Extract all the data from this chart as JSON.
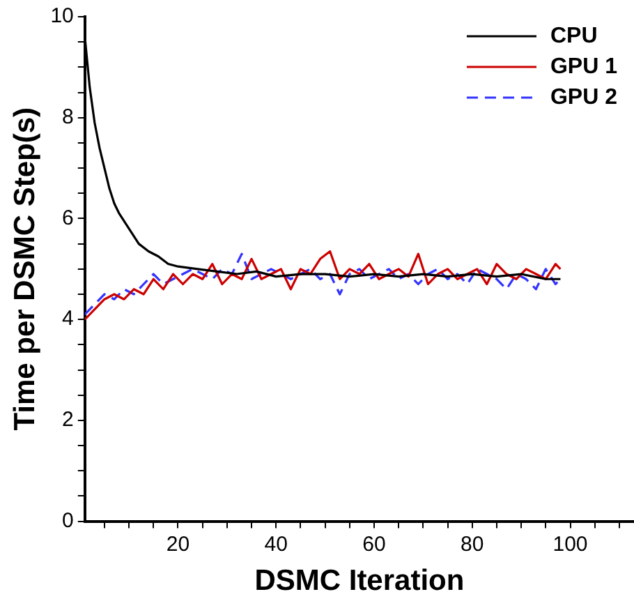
{
  "chart_data": {
    "type": "line",
    "xlabel": "DSMC Iteration",
    "ylabel": "Time per DSMC Step(s)",
    "xlim": [
      1,
      113
    ],
    "xticks": [
      {
        "value": 5,
        "label": null
      },
      {
        "value": 10,
        "label": null
      },
      {
        "value": 15,
        "label": null
      },
      20,
      {
        "value": 25,
        "label": null
      },
      {
        "value": 30,
        "label": null
      },
      {
        "value": 35,
        "label": null
      },
      40,
      {
        "value": 45,
        "label": null
      },
      {
        "value": 50,
        "label": null
      },
      {
        "value": 55,
        "label": null
      },
      60,
      {
        "value": 65,
        "label": null
      },
      {
        "value": 70,
        "label": null
      },
      {
        "value": 75,
        "label": null
      },
      80,
      {
        "value": 85,
        "label": null
      },
      {
        "value": 90,
        "label": null
      },
      {
        "value": 95,
        "label": null
      },
      100,
      {
        "value": 105,
        "label": null
      },
      {
        "value": 110,
        "label": null
      }
    ],
    "ylim": [
      0,
      10
    ],
    "yticks": [
      0,
      {
        "value": 0.5,
        "label": null
      },
      {
        "value": 1,
        "label": null
      },
      {
        "value": 1.5,
        "label": null
      },
      2,
      {
        "value": 2.5,
        "label": null
      },
      {
        "value": 3,
        "label": null
      },
      {
        "value": 3.5,
        "label": null
      },
      4,
      {
        "value": 4.5,
        "label": null
      },
      {
        "value": 5,
        "label": null
      },
      {
        "value": 5.5,
        "label": null
      },
      6,
      {
        "value": 6.5,
        "label": null
      },
      {
        "value": 7,
        "label": null
      },
      {
        "value": 7.5,
        "label": null
      },
      8,
      {
        "value": 8.5,
        "label": null
      },
      {
        "value": 9,
        "label": null
      },
      {
        "value": 9.5,
        "label": null
      },
      10
    ],
    "grid": false,
    "legend": "top right",
    "marker": "none",
    "series": [
      {
        "name": "CPU",
        "color": "#000000",
        "line_style": "solid",
        "x": [
          1,
          2,
          3,
          4,
          5,
          6,
          7,
          8,
          10,
          12,
          14,
          16,
          18,
          20,
          24,
          28,
          32,
          36,
          40,
          45,
          50,
          55,
          60,
          65,
          70,
          75,
          80,
          85,
          90,
          95,
          98
        ],
        "values": [
          9.6,
          8.6,
          7.9,
          7.4,
          7.0,
          6.6,
          6.3,
          6.1,
          5.8,
          5.5,
          5.35,
          5.25,
          5.1,
          5.05,
          5.0,
          4.95,
          4.9,
          4.95,
          4.85,
          4.9,
          4.9,
          4.85,
          4.9,
          4.85,
          4.9,
          4.85,
          4.9,
          4.85,
          4.9,
          4.8,
          4.8
        ]
      },
      {
        "name": "GPU 1",
        "color": "#cc0000",
        "line_style": "solid",
        "x": [
          1,
          3,
          5,
          7,
          9,
          11,
          13,
          15,
          17,
          19,
          21,
          23,
          25,
          27,
          29,
          31,
          33,
          35,
          37,
          39,
          41,
          43,
          45,
          47,
          49,
          51,
          53,
          55,
          57,
          59,
          61,
          63,
          65,
          67,
          69,
          71,
          73,
          75,
          77,
          79,
          81,
          83,
          85,
          87,
          89,
          91,
          93,
          95,
          97,
          98
        ],
        "values": [
          4.0,
          4.2,
          4.4,
          4.5,
          4.4,
          4.6,
          4.5,
          4.8,
          4.6,
          4.9,
          4.7,
          4.9,
          4.8,
          5.1,
          4.7,
          4.9,
          4.8,
          5.2,
          4.8,
          4.9,
          5.0,
          4.6,
          5.0,
          4.9,
          5.2,
          5.35,
          4.8,
          5.0,
          4.9,
          5.1,
          4.8,
          4.9,
          5.0,
          4.85,
          5.3,
          4.7,
          4.9,
          5.0,
          4.8,
          4.9,
          5.0,
          4.7,
          5.1,
          4.9,
          4.8,
          5.0,
          4.9,
          4.8,
          5.1,
          5.0
        ]
      },
      {
        "name": "GPU 2",
        "color": "#3333ff",
        "line_style": "dashed",
        "x": [
          1,
          3,
          5,
          7,
          9,
          11,
          13,
          15,
          17,
          19,
          21,
          23,
          25,
          27,
          29,
          31,
          33,
          35,
          37,
          39,
          41,
          43,
          45,
          47,
          49,
          51,
          53,
          55,
          57,
          59,
          61,
          63,
          65,
          67,
          69,
          71,
          73,
          75,
          77,
          79,
          81,
          83,
          85,
          87,
          89,
          91,
          93,
          95,
          97,
          98
        ],
        "values": [
          4.1,
          4.3,
          4.5,
          4.4,
          4.6,
          4.5,
          4.7,
          4.9,
          4.7,
          4.8,
          4.9,
          5.0,
          4.9,
          4.8,
          5.0,
          4.9,
          5.3,
          4.8,
          4.9,
          5.0,
          4.9,
          4.8,
          4.9,
          5.0,
          4.8,
          4.9,
          4.5,
          4.9,
          5.0,
          4.8,
          4.9,
          5.0,
          4.8,
          4.9,
          4.7,
          4.9,
          5.0,
          4.8,
          4.9,
          4.7,
          5.0,
          4.9,
          4.8,
          4.6,
          4.9,
          4.8,
          4.6,
          5.0,
          4.7,
          4.8
        ]
      }
    ]
  }
}
